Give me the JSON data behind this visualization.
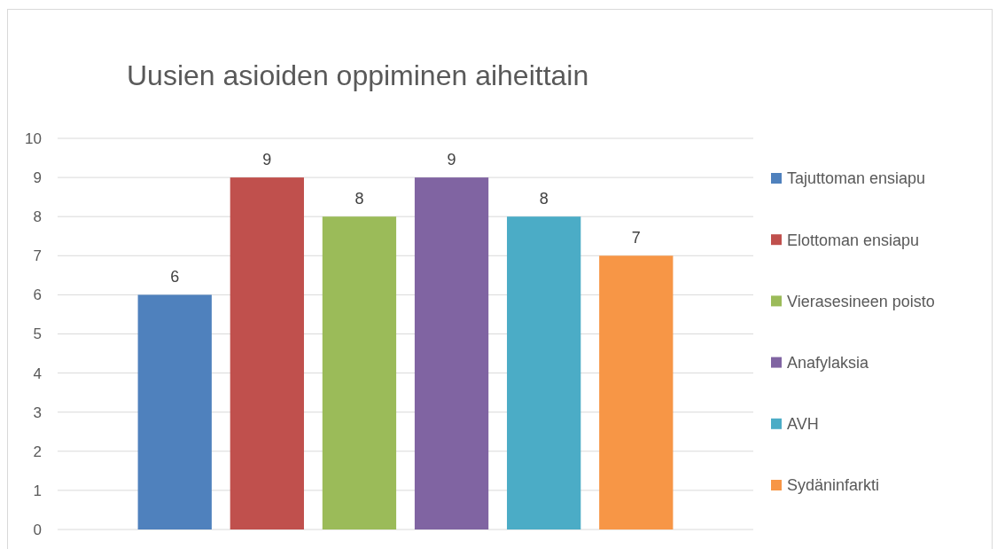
{
  "chart_data": {
    "type": "bar",
    "title": "Uusien asioiden oppiminen aiheittain",
    "categories": [
      null
    ],
    "series": [
      {
        "name": "Tajuttoman ensiapu",
        "color": "#4f81bd",
        "values": [
          6
        ]
      },
      {
        "name": "Elottoman ensiapu",
        "color": "#c0504d",
        "values": [
          9
        ]
      },
      {
        "name": "Vierasesineen poisto",
        "color": "#9bbb59",
        "values": [
          8
        ]
      },
      {
        "name": "Anafylaksia",
        "color": "#8064a2",
        "values": [
          9
        ]
      },
      {
        "name": "AVH",
        "color": "#4bacc6",
        "values": [
          8
        ]
      },
      {
        "name": "Sydäninfarkti",
        "color": "#f79646",
        "values": [
          7
        ]
      }
    ],
    "ylim": [
      0,
      10
    ],
    "yticks": [
      0,
      1,
      2,
      3,
      4,
      5,
      6,
      7,
      8,
      9,
      10
    ],
    "grid": "y",
    "legend": "right",
    "data_labels": true
  }
}
